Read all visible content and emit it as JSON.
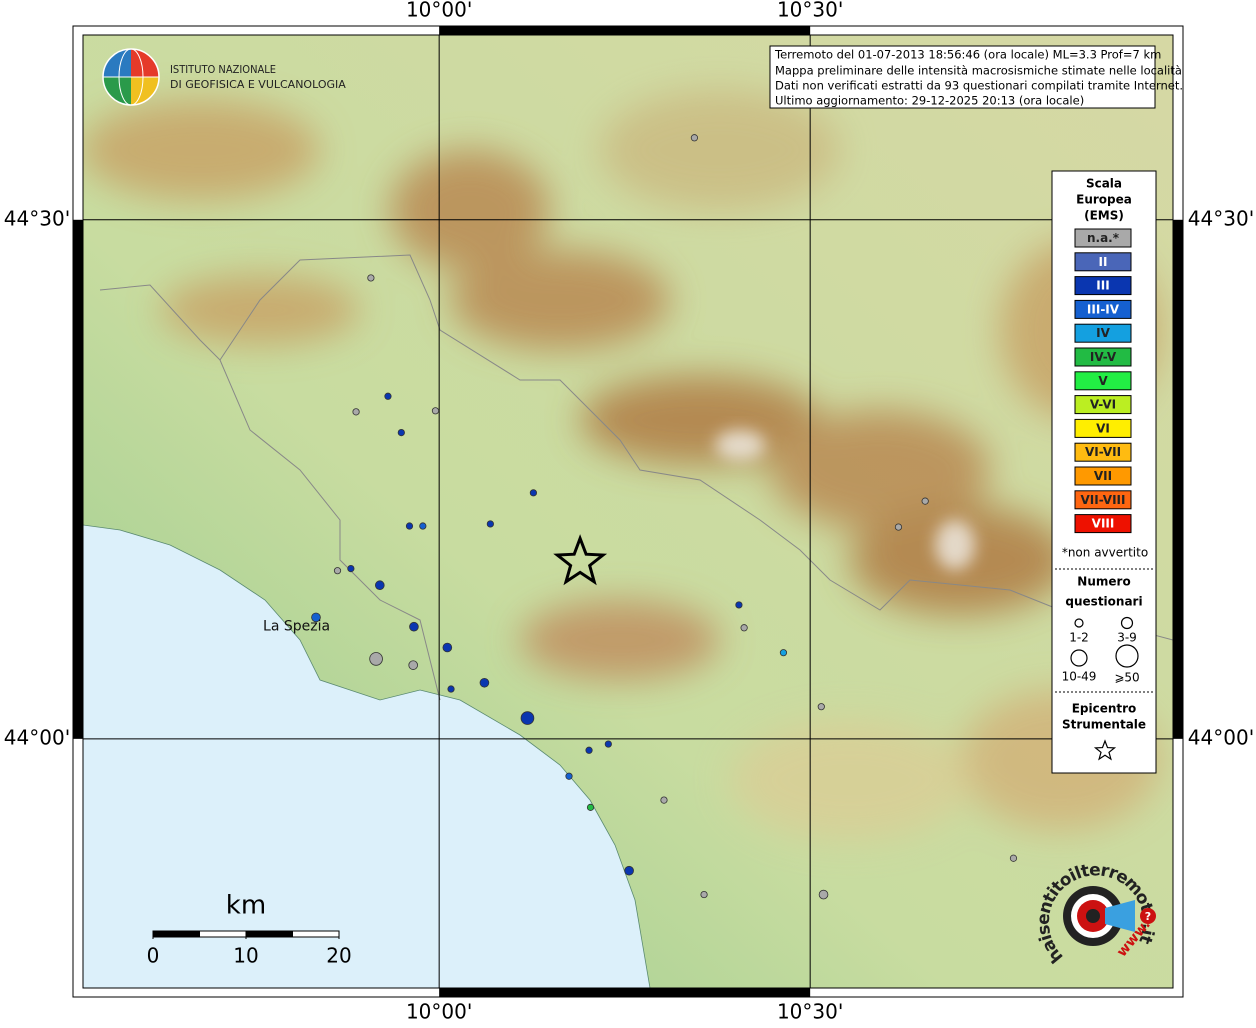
{
  "institute": [
    "ISTITUTO NAZIONALE",
    "DI GEOFISICA E VULCANOLOGIA"
  ],
  "info": [
    "Terremoto del 01-07-2013 18:56:46 (ora locale) ML=3.3 Prof=7 km",
    "Mappa preliminare delle intensità macrosismiche stimate nelle località",
    "Dati non verificati estratti da 93 questionari compilati tramite Internet.",
    "Ultimo aggiornamento: 29-12-2025 20:13 (ora locale)"
  ],
  "lon_range": [
    9.52,
    10.989
  ],
  "lat_range": [
    43.76,
    44.678
  ],
  "lon_ticks": [
    {
      "value": 10.0,
      "label": "10°00'"
    },
    {
      "value": 10.5,
      "label": "10°30'"
    }
  ],
  "lat_ticks": [
    {
      "value": 44.5,
      "label": "44°30'"
    },
    {
      "value": 44.0,
      "label": "44°00'"
    }
  ],
  "places": [
    {
      "name": "La Spezia",
      "lon": 9.824,
      "lat": 44.114
    }
  ],
  "legend": {
    "title": [
      "Scala",
      "Europea",
      "(EMS)"
    ],
    "classes": [
      {
        "label": "n.a.*",
        "color": "#a9a9a9"
      },
      {
        "label": "II",
        "color": "#4a66b8"
      },
      {
        "label": "III",
        "color": "#0a36b0"
      },
      {
        "label": "III-IV",
        "color": "#1560d0"
      },
      {
        "label": "IV",
        "color": "#14a0e0"
      },
      {
        "label": "IV-V",
        "color": "#22bb44"
      },
      {
        "label": "V",
        "color": "#22ee44"
      },
      {
        "label": "V-VI",
        "color": "#bbee22"
      },
      {
        "label": "VI",
        "color": "#ffee00"
      },
      {
        "label": "VI-VII",
        "color": "#ffbb11"
      },
      {
        "label": "VII",
        "color": "#ff9900"
      },
      {
        "label": "VII-VIII",
        "color": "#ff6611"
      },
      {
        "label": "VIII",
        "color": "#ee1100"
      }
    ],
    "note": "*non avvertito",
    "size_title": [
      "Numero",
      "questionari"
    ],
    "sizes": [
      "1-2",
      "3-9",
      "10-49",
      "⩾50"
    ],
    "epicenter_title": [
      "Epicentro",
      "Strumentale"
    ]
  },
  "epicenter": {
    "lon": 10.19,
    "lat": 44.17
  },
  "points": [
    {
      "lon": 10.344,
      "lat": 44.579,
      "intensity": "n.a.*",
      "size": "1-2"
    },
    {
      "lon": 9.908,
      "lat": 44.444,
      "intensity": "n.a.*",
      "size": "1-2"
    },
    {
      "lon": 9.931,
      "lat": 44.33,
      "intensity": "III",
      "size": "1-2"
    },
    {
      "lon": 9.888,
      "lat": 44.315,
      "intensity": "n.a.*",
      "size": "1-2"
    },
    {
      "lon": 9.995,
      "lat": 44.316,
      "intensity": "n.a.*",
      "size": "1-2"
    },
    {
      "lon": 9.949,
      "lat": 44.295,
      "intensity": "III",
      "size": "1-2"
    },
    {
      "lon": 10.127,
      "lat": 44.237,
      "intensity": "III",
      "size": "1-2"
    },
    {
      "lon": 9.96,
      "lat": 44.205,
      "intensity": "III",
      "size": "1-2"
    },
    {
      "lon": 9.978,
      "lat": 44.205,
      "intensity": "III-IV",
      "size": "1-2"
    },
    {
      "lon": 10.069,
      "lat": 44.207,
      "intensity": "III",
      "size": "1-2"
    },
    {
      "lon": 9.881,
      "lat": 44.164,
      "intensity": "III",
      "size": "1-2"
    },
    {
      "lon": 9.863,
      "lat": 44.162,
      "intensity": "n.a.*",
      "size": "1-2"
    },
    {
      "lon": 9.92,
      "lat": 44.148,
      "intensity": "III",
      "size": "3-9"
    },
    {
      "lon": 9.834,
      "lat": 44.117,
      "intensity": "III-IV",
      "size": "3-9"
    },
    {
      "lon": 9.966,
      "lat": 44.108,
      "intensity": "III",
      "size": "3-9"
    },
    {
      "lon": 9.915,
      "lat": 44.077,
      "intensity": "n.a.*",
      "size": "10-49"
    },
    {
      "lon": 9.965,
      "lat": 44.071,
      "intensity": "n.a.*",
      "size": "3-9"
    },
    {
      "lon": 10.011,
      "lat": 44.088,
      "intensity": "III",
      "size": "3-9"
    },
    {
      "lon": 10.016,
      "lat": 44.048,
      "intensity": "III",
      "size": "1-2"
    },
    {
      "lon": 10.061,
      "lat": 44.054,
      "intensity": "III",
      "size": "3-9"
    },
    {
      "lon": 10.119,
      "lat": 44.02,
      "intensity": "III",
      "size": "10-49"
    },
    {
      "lon": 10.404,
      "lat": 44.129,
      "intensity": "III",
      "size": "1-2"
    },
    {
      "lon": 10.411,
      "lat": 44.107,
      "intensity": "n.a.*",
      "size": "1-2"
    },
    {
      "lon": 10.464,
      "lat": 44.083,
      "intensity": "IV",
      "size": "1-2"
    },
    {
      "lon": 10.619,
      "lat": 44.204,
      "intensity": "n.a.*",
      "size": "1-2"
    },
    {
      "lon": 10.655,
      "lat": 44.229,
      "intensity": "n.a.*",
      "size": "1-2"
    },
    {
      "lon": 10.515,
      "lat": 44.031,
      "intensity": "n.a.*",
      "size": "1-2"
    },
    {
      "lon": 10.202,
      "lat": 43.989,
      "intensity": "III",
      "size": "1-2"
    },
    {
      "lon": 10.228,
      "lat": 43.995,
      "intensity": "III",
      "size": "1-2"
    },
    {
      "lon": 10.175,
      "lat": 43.964,
      "intensity": "III-IV",
      "size": "1-2"
    },
    {
      "lon": 10.204,
      "lat": 43.934,
      "intensity": "IV-V",
      "size": "1-2"
    },
    {
      "lon": 10.303,
      "lat": 43.941,
      "intensity": "n.a.*",
      "size": "1-2"
    },
    {
      "lon": 10.256,
      "lat": 43.873,
      "intensity": "III",
      "size": "3-9"
    },
    {
      "lon": 10.357,
      "lat": 43.85,
      "intensity": "n.a.*",
      "size": "1-2"
    },
    {
      "lon": 10.518,
      "lat": 43.85,
      "intensity": "n.a.*",
      "size": "3-9"
    },
    {
      "lon": 10.774,
      "lat": 43.885,
      "intensity": "n.a.*",
      "size": "1-2"
    }
  ],
  "scale_bar": {
    "unit": "km",
    "ticks": [
      0,
      10,
      20
    ]
  },
  "logo": {
    "text": "haisentitoilterremoto.it",
    "prefix": "www.",
    "mark": "?"
  }
}
